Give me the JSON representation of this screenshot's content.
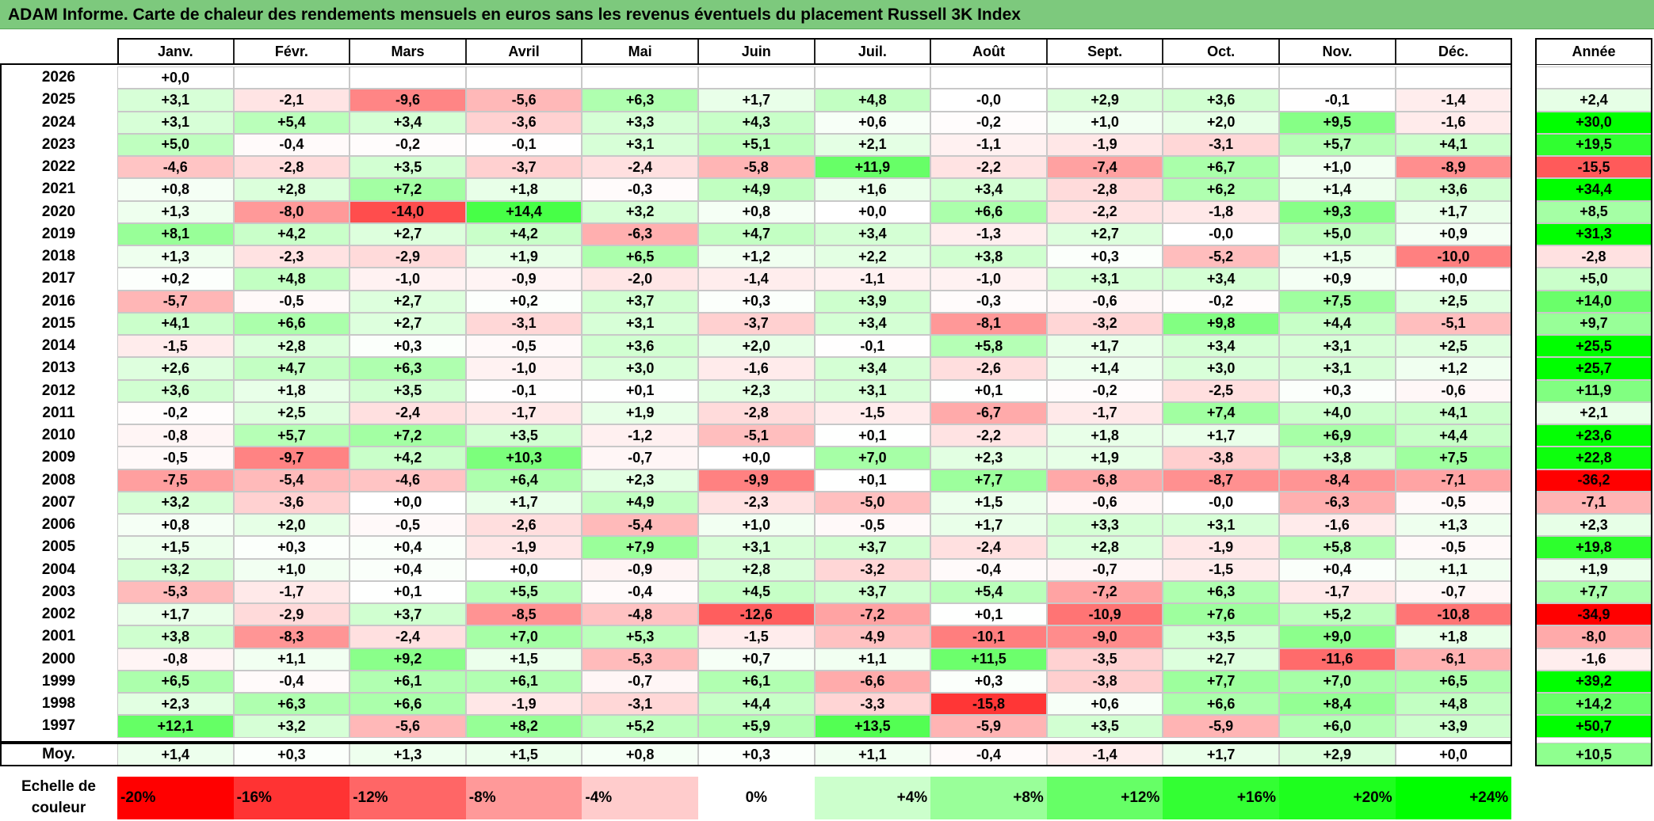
{
  "title": "ADAM Informe. Carte de chaleur des rendements mensuels en euros sans les revenus éventuels du placement Russell 3K Index",
  "chart_data": {
    "type": "heatmap",
    "columns": [
      "Janv.",
      "Févr.",
      "Mars",
      "Avril",
      "Mai",
      "Juin",
      "Juil.",
      "Août",
      "Sept.",
      "Oct.",
      "Nov.",
      "Déc."
    ],
    "year_column": "Année",
    "rows": [
      {
        "label": "2026",
        "months": [
          "+0,0",
          "",
          "",
          "",
          "",
          "",
          "",
          "",
          "",
          "",
          "",
          ""
        ],
        "year": ""
      },
      {
        "label": "2025",
        "months": [
          "+3,1",
          "-2,1",
          "-9,6",
          "-5,6",
          "+6,3",
          "+1,7",
          "+4,8",
          "-0,0",
          "+2,9",
          "+3,6",
          "-0,1",
          "-1,4"
        ],
        "year": "+2,4"
      },
      {
        "label": "2024",
        "months": [
          "+3,1",
          "+5,4",
          "+3,4",
          "-3,6",
          "+3,3",
          "+4,3",
          "+0,6",
          "-0,2",
          "+1,0",
          "+2,0",
          "+9,5",
          "-1,6"
        ],
        "year": "+30,0"
      },
      {
        "label": "2023",
        "months": [
          "+5,0",
          "-0,4",
          "-0,2",
          "-0,1",
          "+3,1",
          "+5,1",
          "+2,1",
          "-1,1",
          "-1,9",
          "-3,1",
          "+5,7",
          "+4,1"
        ],
        "year": "+19,5"
      },
      {
        "label": "2022",
        "months": [
          "-4,6",
          "-2,8",
          "+3,5",
          "-3,7",
          "-2,4",
          "-5,8",
          "+11,9",
          "-2,2",
          "-7,4",
          "+6,7",
          "+1,0",
          "-8,9"
        ],
        "year": "-15,5"
      },
      {
        "label": "2021",
        "months": [
          "+0,8",
          "+2,8",
          "+7,2",
          "+1,8",
          "-0,3",
          "+4,9",
          "+1,6",
          "+3,4",
          "-2,8",
          "+6,2",
          "+1,4",
          "+3,6"
        ],
        "year": "+34,4"
      },
      {
        "label": "2020",
        "months": [
          "+1,3",
          "-8,0",
          "-14,0",
          "+14,4",
          "+3,2",
          "+0,8",
          "+0,0",
          "+6,6",
          "-2,2",
          "-1,8",
          "+9,3",
          "+1,7"
        ],
        "year": "+8,5"
      },
      {
        "label": "2019",
        "months": [
          "+8,1",
          "+4,2",
          "+2,7",
          "+4,2",
          "-6,3",
          "+4,7",
          "+3,4",
          "-1,3",
          "+2,7",
          "-0,0",
          "+5,0",
          "+0,9"
        ],
        "year": "+31,3"
      },
      {
        "label": "2018",
        "months": [
          "+1,3",
          "-2,3",
          "-2,9",
          "+1,9",
          "+6,5",
          "+1,2",
          "+2,2",
          "+3,8",
          "+0,3",
          "-5,2",
          "+1,5",
          "-10,0"
        ],
        "year": "-2,8"
      },
      {
        "label": "2017",
        "months": [
          "+0,2",
          "+4,8",
          "-1,0",
          "-0,9",
          "-2,0",
          "-1,4",
          "-1,1",
          "-1,0",
          "+3,1",
          "+3,4",
          "+0,9",
          "+0,0"
        ],
        "year": "+5,0"
      },
      {
        "label": "2016",
        "months": [
          "-5,7",
          "-0,5",
          "+2,7",
          "+0,2",
          "+3,7",
          "+0,3",
          "+3,9",
          "-0,3",
          "-0,6",
          "-0,2",
          "+7,5",
          "+2,5"
        ],
        "year": "+14,0"
      },
      {
        "label": "2015",
        "months": [
          "+4,1",
          "+6,6",
          "+2,7",
          "-3,1",
          "+3,1",
          "-3,7",
          "+3,4",
          "-8,1",
          "-3,2",
          "+9,8",
          "+4,4",
          "-5,1"
        ],
        "year": "+9,7"
      },
      {
        "label": "2014",
        "months": [
          "-1,5",
          "+2,8",
          "+0,3",
          "-0,5",
          "+3,6",
          "+2,0",
          "-0,1",
          "+5,8",
          "+1,7",
          "+3,4",
          "+3,1",
          "+2,5"
        ],
        "year": "+25,5"
      },
      {
        "label": "2013",
        "months": [
          "+2,6",
          "+4,7",
          "+6,3",
          "-1,0",
          "+3,0",
          "-1,6",
          "+3,4",
          "-2,6",
          "+1,4",
          "+3,0",
          "+3,1",
          "+1,2"
        ],
        "year": "+25,7"
      },
      {
        "label": "2012",
        "months": [
          "+3,6",
          "+1,8",
          "+3,5",
          "-0,1",
          "+0,1",
          "+2,3",
          "+3,1",
          "+0,1",
          "-0,2",
          "-2,5",
          "+0,3",
          "-0,6"
        ],
        "year": "+11,9"
      },
      {
        "label": "2011",
        "months": [
          "-0,2",
          "+2,5",
          "-2,4",
          "-1,7",
          "+1,9",
          "-2,8",
          "-1,5",
          "-6,7",
          "-1,7",
          "+7,4",
          "+4,0",
          "+4,1"
        ],
        "year": "+2,1"
      },
      {
        "label": "2010",
        "months": [
          "-0,8",
          "+5,7",
          "+7,2",
          "+3,5",
          "-1,2",
          "-5,1",
          "+0,1",
          "-2,2",
          "+1,8",
          "+1,7",
          "+6,9",
          "+4,4"
        ],
        "year": "+23,6"
      },
      {
        "label": "2009",
        "months": [
          "-0,5",
          "-9,7",
          "+4,2",
          "+10,3",
          "-0,7",
          "+0,0",
          "+7,0",
          "+2,3",
          "+1,9",
          "-3,8",
          "+3,8",
          "+7,5"
        ],
        "year": "+22,8"
      },
      {
        "label": "2008",
        "months": [
          "-7,5",
          "-5,4",
          "-4,6",
          "+6,4",
          "+2,3",
          "-9,9",
          "+0,1",
          "+7,7",
          "-6,8",
          "-8,7",
          "-8,4",
          "-7,1"
        ],
        "year": "-36,2"
      },
      {
        "label": "2007",
        "months": [
          "+3,2",
          "-3,6",
          "+0,0",
          "+1,7",
          "+4,9",
          "-2,3",
          "-5,0",
          "+1,5",
          "-0,6",
          "-0,0",
          "-6,3",
          "-0,5"
        ],
        "year": "-7,1"
      },
      {
        "label": "2006",
        "months": [
          "+0,8",
          "+2,0",
          "-0,5",
          "-2,6",
          "-5,4",
          "+1,0",
          "-0,5",
          "+1,7",
          "+3,3",
          "+3,1",
          "-1,6",
          "+1,3"
        ],
        "year": "+2,3"
      },
      {
        "label": "2005",
        "months": [
          "+1,5",
          "+0,3",
          "+0,4",
          "-1,9",
          "+7,9",
          "+3,1",
          "+3,7",
          "-2,4",
          "+2,8",
          "-1,9",
          "+5,8",
          "-0,5"
        ],
        "year": "+19,8"
      },
      {
        "label": "2004",
        "months": [
          "+3,2",
          "+1,0",
          "+0,4",
          "+0,0",
          "-0,9",
          "+2,8",
          "-3,2",
          "-0,4",
          "-0,7",
          "-1,5",
          "+0,4",
          "+1,1"
        ],
        "year": "+1,9"
      },
      {
        "label": "2003",
        "months": [
          "-5,3",
          "-1,7",
          "+0,1",
          "+5,5",
          "-0,4",
          "+4,5",
          "+3,7",
          "+5,4",
          "-7,2",
          "+6,3",
          "-1,7",
          "-0,7"
        ],
        "year": "+7,7"
      },
      {
        "label": "2002",
        "months": [
          "+1,7",
          "-2,9",
          "+3,7",
          "-8,5",
          "-4,8",
          "-12,6",
          "-7,2",
          "+0,1",
          "-10,9",
          "+7,6",
          "+5,2",
          "-10,8"
        ],
        "year": "-34,9"
      },
      {
        "label": "2001",
        "months": [
          "+3,8",
          "-8,3",
          "-2,4",
          "+7,0",
          "+5,3",
          "-1,5",
          "-4,9",
          "-10,1",
          "-9,0",
          "+3,5",
          "+9,0",
          "+1,8"
        ],
        "year": "-8,0"
      },
      {
        "label": "2000",
        "months": [
          "-0,8",
          "+1,1",
          "+9,2",
          "+1,5",
          "-5,3",
          "+0,7",
          "+1,1",
          "+11,5",
          "-3,5",
          "+2,7",
          "-11,6",
          "-6,1"
        ],
        "year": "-1,6"
      },
      {
        "label": "1999",
        "months": [
          "+6,5",
          "-0,4",
          "+6,1",
          "+6,1",
          "-0,7",
          "+6,1",
          "-6,6",
          "+0,3",
          "-3,8",
          "+7,7",
          "+7,0",
          "+6,5"
        ],
        "year": "+39,2"
      },
      {
        "label": "1998",
        "months": [
          "+2,3",
          "+6,3",
          "+6,6",
          "-1,9",
          "-3,1",
          "+4,4",
          "-3,3",
          "-15,8",
          "+0,6",
          "+6,6",
          "+8,4",
          "+4,8"
        ],
        "year": "+14,2"
      },
      {
        "label": "1997",
        "months": [
          "+12,1",
          "+3,2",
          "-5,6",
          "+8,2",
          "+5,2",
          "+5,9",
          "+13,5",
          "-5,9",
          "+3,5",
          "-5,9",
          "+6,0",
          "+3,9"
        ],
        "year": "+50,7"
      }
    ],
    "average_row": {
      "label": "Moy.",
      "months": [
        "+1,4",
        "+0,3",
        "+1,3",
        "+1,5",
        "+0,8",
        "+0,3",
        "+1,1",
        "-0,4",
        "-1,4",
        "+1,7",
        "+2,9",
        "+0,0"
      ],
      "year": "+10,5"
    },
    "legend": {
      "label": "Echelle de couleur",
      "steps": [
        {
          "text": "-20%",
          "value": -20,
          "color": "#ff0000"
        },
        {
          "text": "-16%",
          "value": -16,
          "color": "#ff3333"
        },
        {
          "text": "-12%",
          "value": -12,
          "color": "#ff6666"
        },
        {
          "text": "-8%",
          "value": -8,
          "color": "#ff9999"
        },
        {
          "text": "-4%",
          "value": -4,
          "color": "#ffcccc"
        },
        {
          "text": "0%",
          "value": 0,
          "color": "#ffffff"
        },
        {
          "text": "+4%",
          "value": 4,
          "color": "#ccffcc"
        },
        {
          "text": "+8%",
          "value": 8,
          "color": "#99ff99"
        },
        {
          "text": "+12%",
          "value": 12,
          "color": "#66ff66"
        },
        {
          "text": "+16%",
          "value": 16,
          "color": "#33ff33"
        },
        {
          "text": "+20%",
          "value": 20,
          "color": "#1eff1e"
        },
        {
          "text": "+24%",
          "value": 24,
          "color": "#00ff00"
        }
      ]
    }
  }
}
